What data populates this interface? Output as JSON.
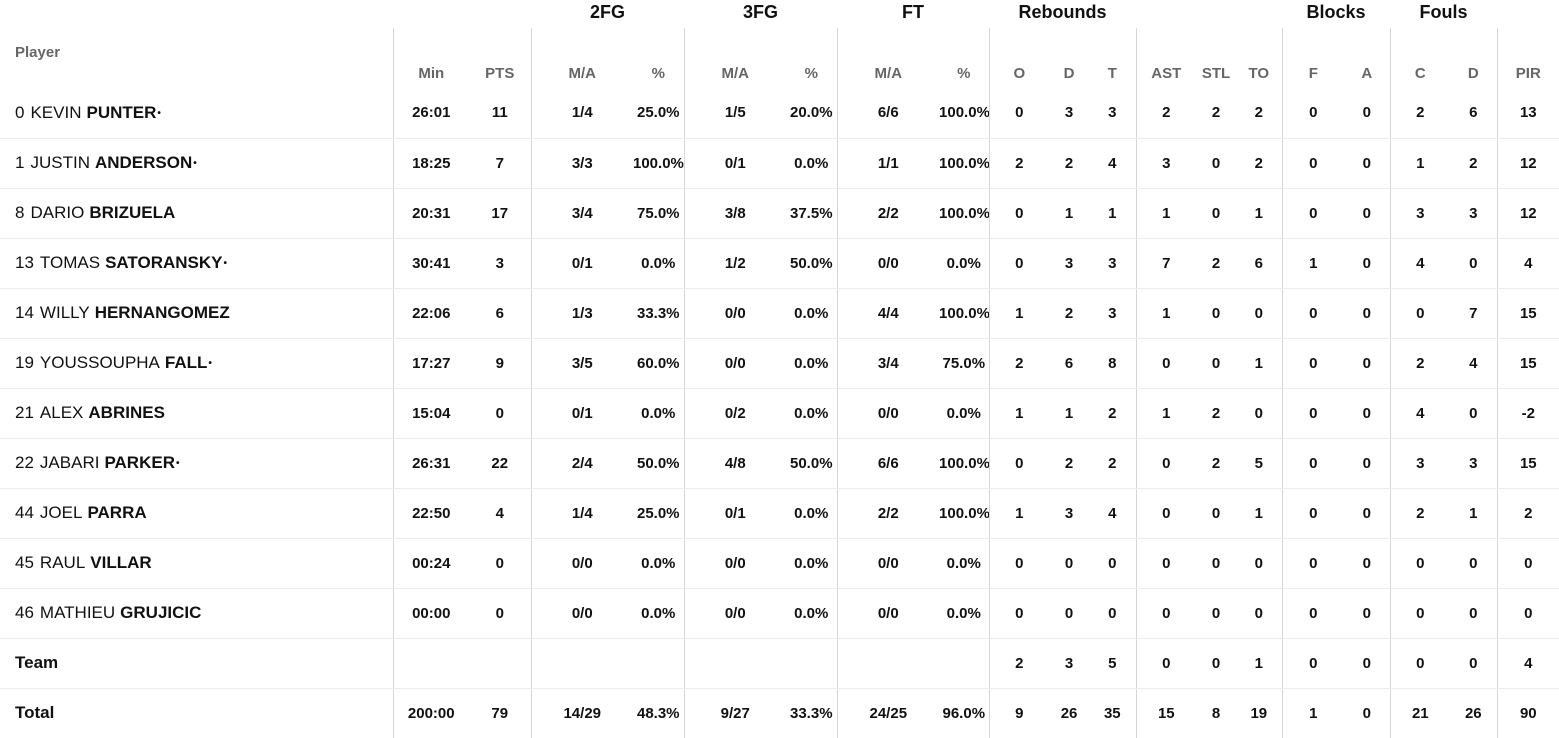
{
  "group_headers": {
    "fg2": "2FG",
    "fg3": "3FG",
    "ft": "FT",
    "rebounds": "Rebounds",
    "blocks": "Blocks",
    "fouls": "Fouls"
  },
  "column_headers": {
    "player": "Player",
    "min": "Min",
    "pts": "PTS",
    "fg2_ma": "M/A",
    "fg2_pct": "%",
    "fg3_ma": "M/A",
    "fg3_pct": "%",
    "ft_ma": "M/A",
    "ft_pct": "%",
    "reb_o": "O",
    "reb_d": "D",
    "reb_t": "T",
    "ast": "AST",
    "stl": "STL",
    "to": "TO",
    "blk_f": "F",
    "blk_a": "A",
    "foul_c": "C",
    "foul_d": "D",
    "pir": "PIR"
  },
  "starter_marker": "•",
  "rows": [
    {
      "number": "0",
      "first": "KEVIN",
      "last": "PUNTER",
      "starter": true,
      "min": "26:01",
      "pts": "11",
      "fg2_ma": "1/4",
      "fg2_pct": "25.0%",
      "fg3_ma": "1/5",
      "fg3_pct": "20.0%",
      "ft_ma": "6/6",
      "ft_pct": "100.0%",
      "reb_o": "0",
      "reb_d": "3",
      "reb_t": "3",
      "ast": "2",
      "stl": "2",
      "to": "2",
      "blk_f": "0",
      "blk_a": "0",
      "foul_c": "2",
      "foul_d": "6",
      "pir": "13"
    },
    {
      "number": "1",
      "first": "JUSTIN",
      "last": "ANDERSON",
      "starter": true,
      "min": "18:25",
      "pts": "7",
      "fg2_ma": "3/3",
      "fg2_pct": "100.0%",
      "fg3_ma": "0/1",
      "fg3_pct": "0.0%",
      "ft_ma": "1/1",
      "ft_pct": "100.0%",
      "reb_o": "2",
      "reb_d": "2",
      "reb_t": "4",
      "ast": "3",
      "stl": "0",
      "to": "2",
      "blk_f": "0",
      "blk_a": "0",
      "foul_c": "1",
      "foul_d": "2",
      "pir": "12"
    },
    {
      "number": "8",
      "first": "DARIO",
      "last": "BRIZUELA",
      "starter": false,
      "min": "20:31",
      "pts": "17",
      "fg2_ma": "3/4",
      "fg2_pct": "75.0%",
      "fg3_ma": "3/8",
      "fg3_pct": "37.5%",
      "ft_ma": "2/2",
      "ft_pct": "100.0%",
      "reb_o": "0",
      "reb_d": "1",
      "reb_t": "1",
      "ast": "1",
      "stl": "0",
      "to": "1",
      "blk_f": "0",
      "blk_a": "0",
      "foul_c": "3",
      "foul_d": "3",
      "pir": "12"
    },
    {
      "number": "13",
      "first": "TOMAS",
      "last": "SATORANSKY",
      "starter": true,
      "min": "30:41",
      "pts": "3",
      "fg2_ma": "0/1",
      "fg2_pct": "0.0%",
      "fg3_ma": "1/2",
      "fg3_pct": "50.0%",
      "ft_ma": "0/0",
      "ft_pct": "0.0%",
      "reb_o": "0",
      "reb_d": "3",
      "reb_t": "3",
      "ast": "7",
      "stl": "2",
      "to": "6",
      "blk_f": "1",
      "blk_a": "0",
      "foul_c": "4",
      "foul_d": "0",
      "pir": "4"
    },
    {
      "number": "14",
      "first": "WILLY",
      "last": "HERNANGOMEZ",
      "starter": false,
      "min": "22:06",
      "pts": "6",
      "fg2_ma": "1/3",
      "fg2_pct": "33.3%",
      "fg3_ma": "0/0",
      "fg3_pct": "0.0%",
      "ft_ma": "4/4",
      "ft_pct": "100.0%",
      "reb_o": "1",
      "reb_d": "2",
      "reb_t": "3",
      "ast": "1",
      "stl": "0",
      "to": "0",
      "blk_f": "0",
      "blk_a": "0",
      "foul_c": "0",
      "foul_d": "7",
      "pir": "15"
    },
    {
      "number": "19",
      "first": "YOUSSOUPHA",
      "last": "FALL",
      "starter": true,
      "min": "17:27",
      "pts": "9",
      "fg2_ma": "3/5",
      "fg2_pct": "60.0%",
      "fg3_ma": "0/0",
      "fg3_pct": "0.0%",
      "ft_ma": "3/4",
      "ft_pct": "75.0%",
      "reb_o": "2",
      "reb_d": "6",
      "reb_t": "8",
      "ast": "0",
      "stl": "0",
      "to": "1",
      "blk_f": "0",
      "blk_a": "0",
      "foul_c": "2",
      "foul_d": "4",
      "pir": "15"
    },
    {
      "number": "21",
      "first": "ALEX",
      "last": "ABRINES",
      "starter": false,
      "min": "15:04",
      "pts": "0",
      "fg2_ma": "0/1",
      "fg2_pct": "0.0%",
      "fg3_ma": "0/2",
      "fg3_pct": "0.0%",
      "ft_ma": "0/0",
      "ft_pct": "0.0%",
      "reb_o": "1",
      "reb_d": "1",
      "reb_t": "2",
      "ast": "1",
      "stl": "2",
      "to": "0",
      "blk_f": "0",
      "blk_a": "0",
      "foul_c": "4",
      "foul_d": "0",
      "pir": "-2"
    },
    {
      "number": "22",
      "first": "JABARI",
      "last": "PARKER",
      "starter": true,
      "min": "26:31",
      "pts": "22",
      "fg2_ma": "2/4",
      "fg2_pct": "50.0%",
      "fg3_ma": "4/8",
      "fg3_pct": "50.0%",
      "ft_ma": "6/6",
      "ft_pct": "100.0%",
      "reb_o": "0",
      "reb_d": "2",
      "reb_t": "2",
      "ast": "0",
      "stl": "2",
      "to": "5",
      "blk_f": "0",
      "blk_a": "0",
      "foul_c": "3",
      "foul_d": "3",
      "pir": "15"
    },
    {
      "number": "44",
      "first": "JOEL",
      "last": "PARRA",
      "starter": false,
      "min": "22:50",
      "pts": "4",
      "fg2_ma": "1/4",
      "fg2_pct": "25.0%",
      "fg3_ma": "0/1",
      "fg3_pct": "0.0%",
      "ft_ma": "2/2",
      "ft_pct": "100.0%",
      "reb_o": "1",
      "reb_d": "3",
      "reb_t": "4",
      "ast": "0",
      "stl": "0",
      "to": "1",
      "blk_f": "0",
      "blk_a": "0",
      "foul_c": "2",
      "foul_d": "1",
      "pir": "2"
    },
    {
      "number": "45",
      "first": "RAUL",
      "last": "VILLAR",
      "starter": false,
      "min": "00:24",
      "pts": "0",
      "fg2_ma": "0/0",
      "fg2_pct": "0.0%",
      "fg3_ma": "0/0",
      "fg3_pct": "0.0%",
      "ft_ma": "0/0",
      "ft_pct": "0.0%",
      "reb_o": "0",
      "reb_d": "0",
      "reb_t": "0",
      "ast": "0",
      "stl": "0",
      "to": "0",
      "blk_f": "0",
      "blk_a": "0",
      "foul_c": "0",
      "foul_d": "0",
      "pir": "0"
    },
    {
      "number": "46",
      "first": "MATHIEU",
      "last": "GRUJICIC",
      "starter": false,
      "min": "00:00",
      "pts": "0",
      "fg2_ma": "0/0",
      "fg2_pct": "0.0%",
      "fg3_ma": "0/0",
      "fg3_pct": "0.0%",
      "ft_ma": "0/0",
      "ft_pct": "0.0%",
      "reb_o": "0",
      "reb_d": "0",
      "reb_t": "0",
      "ast": "0",
      "stl": "0",
      "to": "0",
      "blk_f": "0",
      "blk_a": "0",
      "foul_c": "0",
      "foul_d": "0",
      "pir": "0"
    }
  ],
  "team_row": {
    "label": "Team",
    "min": "",
    "pts": "",
    "fg2_ma": "",
    "fg2_pct": "",
    "fg3_ma": "",
    "fg3_pct": "",
    "ft_ma": "",
    "ft_pct": "",
    "reb_o": "2",
    "reb_d": "3",
    "reb_t": "5",
    "ast": "0",
    "stl": "0",
    "to": "1",
    "blk_f": "0",
    "blk_a": "0",
    "foul_c": "0",
    "foul_d": "0",
    "pir": "4"
  },
  "total_row": {
    "label": "Total",
    "min": "200:00",
    "pts": "79",
    "fg2_ma": "14/29",
    "fg2_pct": "48.3%",
    "fg3_ma": "9/27",
    "fg3_pct": "33.3%",
    "ft_ma": "24/25",
    "ft_pct": "96.0%",
    "reb_o": "9",
    "reb_d": "26",
    "reb_t": "35",
    "ast": "15",
    "stl": "8",
    "to": "19",
    "blk_f": "1",
    "blk_a": "0",
    "foul_c": "21",
    "foul_d": "26",
    "pir": "90"
  }
}
